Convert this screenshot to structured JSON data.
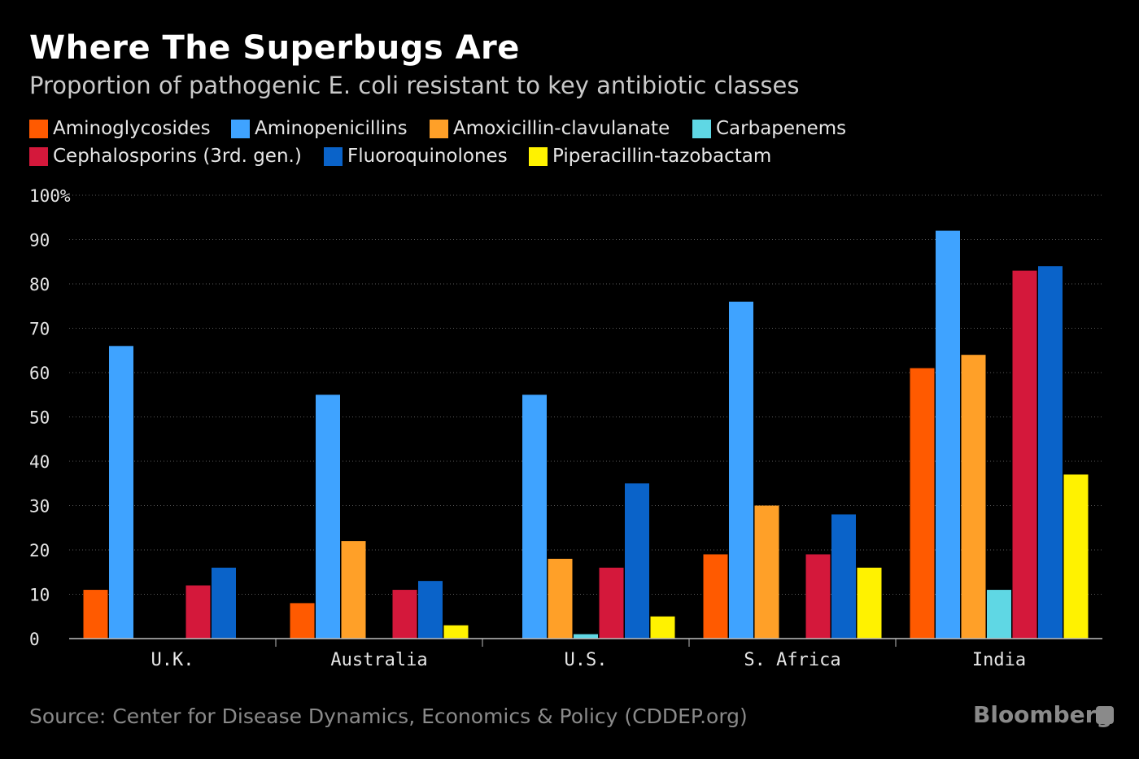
{
  "header": {
    "title": "Where The Superbugs Are",
    "subtitle": "Proportion of pathogenic E. coli resistant to key antibiotic classes"
  },
  "footer": {
    "source": "Source: Center for Disease Dynamics, Economics & Policy (CDDEP.org)",
    "brand": "Bloomberg"
  },
  "chart_data": {
    "type": "bar",
    "title": "Where The Superbugs Are",
    "subtitle": "Proportion of pathogenic E. coli resistant to key antibiotic classes",
    "xlabel": "",
    "ylabel": "",
    "ylim": [
      0,
      100
    ],
    "yticks": [
      0,
      10,
      20,
      30,
      40,
      50,
      60,
      70,
      80,
      90,
      100
    ],
    "ytick_labels": [
      "0",
      "10",
      "20",
      "30",
      "40",
      "50",
      "60",
      "70",
      "80",
      "90",
      "100%"
    ],
    "grid": true,
    "legend_position": "top",
    "categories": [
      "U.K.",
      "Australia",
      "U.S.",
      "S. Africa",
      "India"
    ],
    "series": [
      {
        "name": "Aminoglycosides",
        "color": "#ff5a00",
        "values": [
          11,
          8,
          0,
          19,
          61
        ]
      },
      {
        "name": "Aminopenicillins",
        "color": "#3fa3ff",
        "values": [
          66,
          55,
          55,
          76,
          92
        ]
      },
      {
        "name": "Amoxicillin-clavulanate",
        "color": "#ffa028",
        "values": [
          0,
          22,
          18,
          30,
          64
        ]
      },
      {
        "name": "Carbapenems",
        "color": "#5fd7e4",
        "values": [
          0,
          0,
          1,
          0,
          11
        ]
      },
      {
        "name": "Cephalosporins (3rd. gen.)",
        "color": "#d4183b",
        "values": [
          12,
          11,
          16,
          19,
          83
        ]
      },
      {
        "name": "Fluoroquinolones",
        "color": "#0a63c9",
        "values": [
          16,
          13,
          35,
          28,
          84
        ]
      },
      {
        "name": "Piperacillin-tazobactam",
        "color": "#fff200",
        "values": [
          0,
          3,
          5,
          16,
          37
        ]
      }
    ]
  }
}
